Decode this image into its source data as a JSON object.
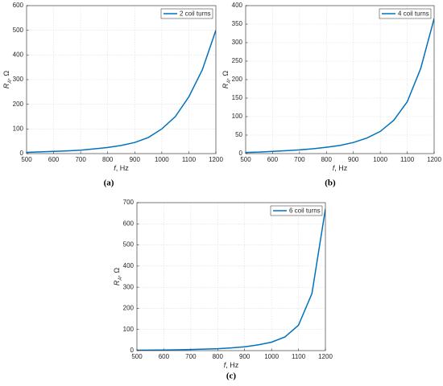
{
  "chart_data": [
    {
      "type": "line",
      "caption": "(a)",
      "xlabel": {
        "main": "f",
        "unit": ", Hz"
      },
      "ylabel": {
        "main": "R",
        "sub": "A",
        "unit": ", Ω"
      },
      "x": [
        500,
        550,
        600,
        650,
        700,
        750,
        800,
        850,
        900,
        950,
        1000,
        1050,
        1100,
        1150,
        1200
      ],
      "series": [
        {
          "name": "2 coil turns",
          "color": "#0072bd",
          "values": [
            5,
            7,
            9,
            11,
            14,
            19,
            25,
            33,
            45,
            65,
            100,
            150,
            230,
            340,
            500
          ]
        }
      ],
      "xlim": [
        500,
        1200
      ],
      "xticks": [
        500,
        600,
        700,
        800,
        900,
        1000,
        1100,
        1200
      ],
      "ylim": [
        0,
        600
      ],
      "yticks": [
        0,
        100,
        200,
        300,
        400,
        500,
        600
      ],
      "grid": true,
      "legend": "upper-right"
    },
    {
      "type": "line",
      "caption": "(b)",
      "xlabel": {
        "main": "f",
        "unit": ", Hz"
      },
      "ylabel": {
        "main": "R",
        "sub": "A",
        "unit": ", Ω"
      },
      "x": [
        500,
        550,
        600,
        650,
        700,
        750,
        800,
        850,
        900,
        950,
        1000,
        1050,
        1100,
        1150,
        1200
      ],
      "series": [
        {
          "name": "4 coil turns",
          "color": "#0072bd",
          "values": [
            3,
            4,
            6,
            8,
            10,
            13,
            17,
            22,
            30,
            42,
            60,
            90,
            140,
            230,
            365
          ]
        }
      ],
      "xlim": [
        500,
        1200
      ],
      "xticks": [
        500,
        600,
        700,
        800,
        900,
        1000,
        1100,
        1200
      ],
      "ylim": [
        0,
        400
      ],
      "yticks": [
        0,
        50,
        100,
        150,
        200,
        250,
        300,
        350,
        400
      ],
      "grid": true,
      "legend": "upper-right"
    },
    {
      "type": "line",
      "caption": "(c)",
      "xlabel": {
        "main": "f",
        "unit": ", Hz"
      },
      "ylabel": {
        "main": "R",
        "sub": "A",
        "unit": ", Ω"
      },
      "x": [
        500,
        550,
        600,
        650,
        700,
        750,
        800,
        850,
        900,
        950,
        1000,
        1050,
        1100,
        1150,
        1200
      ],
      "series": [
        {
          "name": "6 coil turns",
          "color": "#0072bd",
          "values": [
            2,
            2.5,
            3,
            4,
            5,
            7,
            9,
            13,
            18,
            27,
            40,
            65,
            120,
            270,
            670
          ]
        }
      ],
      "xlim": [
        500,
        1200
      ],
      "xticks": [
        500,
        600,
        700,
        800,
        900,
        1000,
        1100,
        1200
      ],
      "ylim": [
        0,
        700
      ],
      "yticks": [
        0,
        100,
        200,
        300,
        400,
        500,
        600,
        700
      ],
      "grid": true,
      "legend": "upper-right"
    }
  ]
}
